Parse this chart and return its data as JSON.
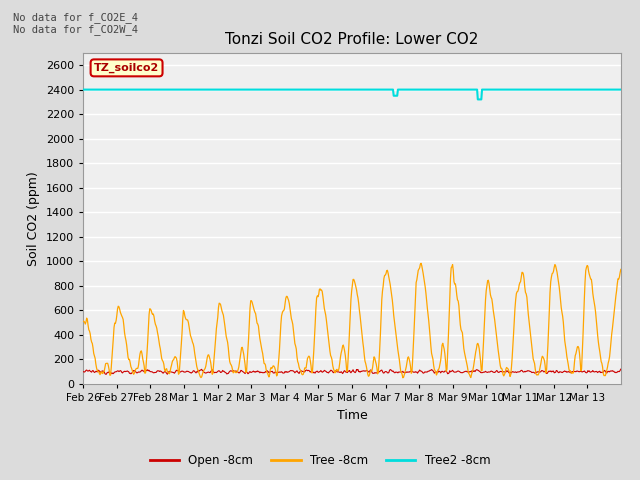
{
  "title": "Tonzi Soil CO2 Profile: Lower CO2",
  "xlabel": "Time",
  "ylabel": "Soil CO2 (ppm)",
  "ylim": [
    0,
    2700
  ],
  "yticks": [
    0,
    200,
    400,
    600,
    800,
    1000,
    1200,
    1400,
    1600,
    1800,
    2000,
    2200,
    2400,
    2600
  ],
  "background_color": "#dcdcdc",
  "plot_bg_color": "#efefef",
  "annotations": [
    "No data for f_CO2E_4",
    "No data for f_CO2W_4"
  ],
  "legend_label": "TZ_soilco2",
  "legend_entries": [
    "Open -8cm",
    "Tree -8cm",
    "Tree2 -8cm"
  ],
  "legend_colors": [
    "#cc0000",
    "#ffa500",
    "#00dddd"
  ],
  "tree2_value": 2400,
  "n_days": 16,
  "xtick_labels": [
    "Feb 26",
    "Feb 27",
    "Feb 28",
    "Mar 1",
    "Mar 2",
    "Mar 3",
    "Mar 4",
    "Mar 5",
    "Mar 6",
    "Mar 7",
    "Mar 8",
    "Mar 9",
    "Mar 10",
    "Mar 11",
    "Mar 12",
    "Mar 13"
  ],
  "title_fontsize": 11,
  "axis_fontsize": 9,
  "tick_fontsize": 7.5
}
